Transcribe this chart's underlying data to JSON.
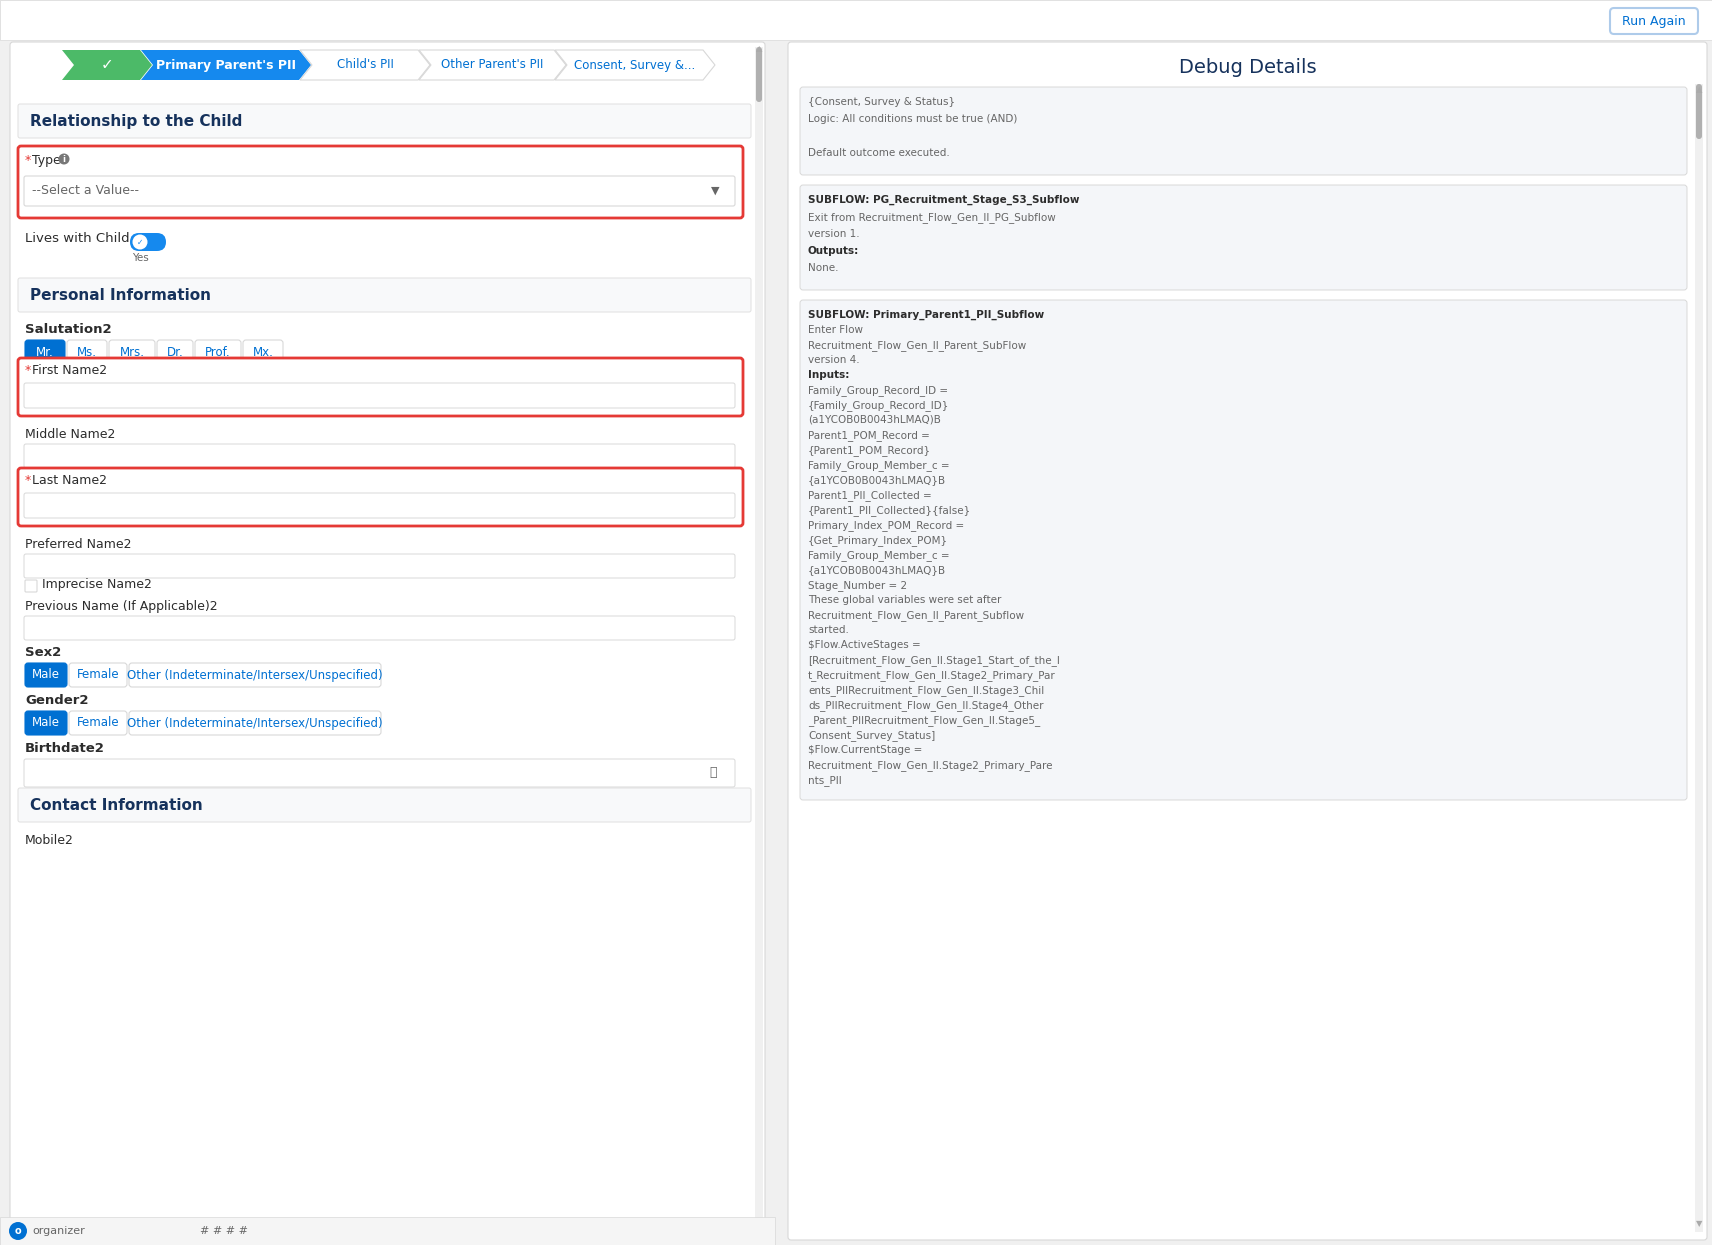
{
  "bg_color": "#f0f0f0",
  "white": "#ffffff",
  "border_gray": "#d8d8d8",
  "border_light": "#e0e0e0",
  "text_dark": "#2c2c2c",
  "text_blue": "#0070d2",
  "text_navy": "#16325c",
  "text_gray": "#666666",
  "text_light_gray": "#999999",
  "red_border": "#e53935",
  "green_step": "#4cba68",
  "blue_step": "#1589ee",
  "step_gray_bg": "#f3f3f3",
  "toggle_blue": "#1589ee",
  "button_blue": "#0070d2",
  "debug_bg": "#f4f6f9",
  "debug_border": "#d8d8d8",
  "run_again_border": "#aecbea",
  "run_again_text": "#0070d2",
  "scrollbar_color": "#b0b0b0",
  "section_header_bg": "#f8f9fa",
  "section_header_text": "#16325c",
  "left_panel_bg": "#ffffff",
  "right_panel_bg": "#ffffff",
  "step_labels_gray": [
    "Child's PII",
    "Other Parent's PII",
    "Consent, Survey &..."
  ],
  "section1_title": "Relationship to the Child",
  "type_label": "Type",
  "type_placeholder": "--Select a Value--",
  "lives_label": "Lives with Child",
  "lives_value": "Yes",
  "section2_title": "Personal Information",
  "salutation_label": "Salutation2",
  "salutation_options": [
    "Mr.",
    "Ms.",
    "Mrs.",
    "Dr.",
    "Prof.",
    "Mx."
  ],
  "first_name_label": "First Name2",
  "middle_name_label": "Middle Name2",
  "last_name_label": "Last Name2",
  "preferred_name_label": "Preferred Name2",
  "imprecise_label": "Imprecise Name2",
  "previous_name_label": "Previous Name (If Applicable)2",
  "sex_label": "Sex2",
  "sex_options": [
    "Male",
    "Female",
    "Other (Indeterminate/Intersex/Unspecified)"
  ],
  "gender_label": "Gender2",
  "gender_options": [
    "Male",
    "Female",
    "Other (Indeterminate/Intersex/Unspecified)"
  ],
  "birthdate_label": "Birthdate2",
  "section3_title": "Contact Information",
  "mobile_label": "Mobile2",
  "debug_title": "Debug Details",
  "db1_lines": [
    [
      "{Consent, Survey & Status}",
      false
    ],
    [
      "Logic: All conditions must be true (AND)",
      false
    ],
    [
      "",
      false
    ],
    [
      "Default outcome executed.",
      false
    ]
  ],
  "db2_lines": [
    [
      "SUBFLOW: PG_Recruitment_Stage_S3_Subflow",
      true
    ],
    [
      "Exit from Recruitment_Flow_Gen_II_PG_Subflow",
      false
    ],
    [
      "version 1.",
      false
    ],
    [
      "Outputs:",
      true
    ],
    [
      "None.",
      false
    ]
  ],
  "db3_lines": [
    [
      "SUBFLOW: Primary_Parent1_PII_Subflow",
      true
    ],
    [
      "Enter Flow",
      false
    ],
    [
      "Recruitment_Flow_Gen_II_Parent_SubFlow",
      false
    ],
    [
      "version 4.",
      false
    ],
    [
      "Inputs:",
      true
    ],
    [
      "Family_Group_Record_ID =",
      false
    ],
    [
      "{Family_Group_Record_ID}",
      false
    ],
    [
      "(a1YCOB0B0043hLMAQ)B",
      false
    ],
    [
      "Parent1_POM_Record =",
      false
    ],
    [
      "{Parent1_POM_Record}",
      false
    ],
    [
      "Family_Group_Member_c =",
      false
    ],
    [
      "{a1YCOB0B0043hLMAQ}B",
      false
    ],
    [
      "Parent1_PII_Collected =",
      false
    ],
    [
      "{Parent1_PII_Collected}{false}",
      false
    ],
    [
      "Primary_Index_POM_Record =",
      false
    ],
    [
      "{Get_Primary_Index_POM}",
      false
    ],
    [
      "Family_Group_Member_c =",
      false
    ],
    [
      "{a1YCOB0B0043hLMAQ}B",
      false
    ],
    [
      "Stage_Number = 2",
      false
    ],
    [
      "These global variables were set after",
      false
    ],
    [
      "Recruitment_Flow_Gen_II_Parent_Subflow",
      false
    ],
    [
      "started.",
      false
    ],
    [
      "$Flow.ActiveStages =",
      false
    ],
    [
      "[Recruitment_Flow_Gen_II.Stage1_Start_of_the_l",
      false
    ],
    [
      "t_Recruitment_Flow_Gen_II.Stage2_Primary_Par",
      false
    ],
    [
      "ents_PIIRecruitment_Flow_Gen_II.Stage3_Chil",
      false
    ],
    [
      "ds_PIIRecruitment_Flow_Gen_II.Stage4_Other",
      false
    ],
    [
      "_Parent_PIIRecruitment_Flow_Gen_II.Stage5_",
      false
    ],
    [
      "Consent_Survey_Status]",
      false
    ],
    [
      "$Flow.CurrentStage =",
      false
    ],
    [
      "Recruitment_Flow_Gen_II.Stage2_Primary_Pare",
      false
    ],
    [
      "nts_PII",
      false
    ]
  ],
  "organizer_text": "organizer",
  "hash_text": "# # # #"
}
